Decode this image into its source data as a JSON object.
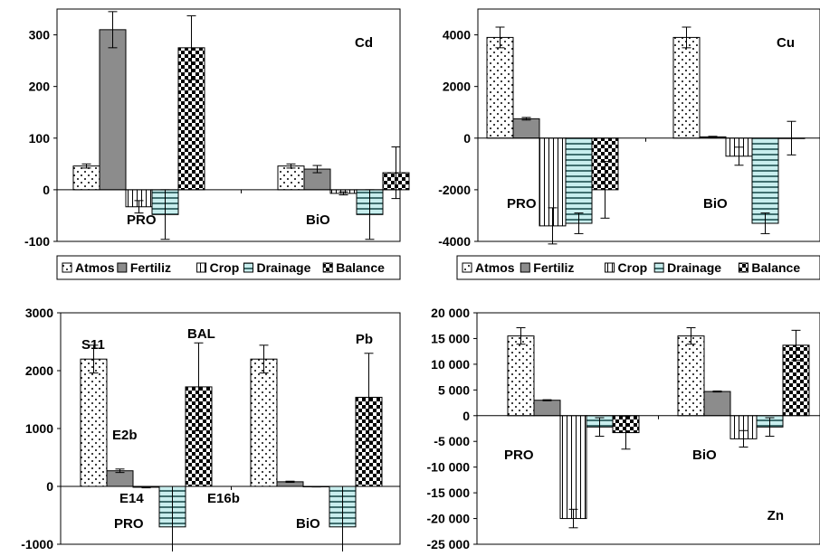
{
  "legend_items": [
    {
      "label": "Atmos",
      "pattern": "dots"
    },
    {
      "label": "Fertiliz",
      "pattern": "gray"
    },
    {
      "label": "Crop",
      "pattern": "vlines"
    },
    {
      "label": "Drainage",
      "pattern": "hlines"
    },
    {
      "label": "Balance",
      "pattern": "checker"
    }
  ],
  "colors": {
    "gray": "#8c8c8c",
    "drainage": "#c8eeee",
    "dark": "#000000"
  },
  "chart_data": [
    {
      "type": "bar",
      "title": "Cd",
      "groups": [
        "PRO",
        "BiO"
      ],
      "series_names": [
        "Atmos",
        "Fertiliz",
        "Crop",
        "Drainage",
        "Balance"
      ],
      "values": [
        [
          46,
          310,
          -33,
          -48,
          275
        ],
        [
          46,
          40,
          -7,
          -48,
          33
        ]
      ],
      "errors": [
        [
          4,
          35,
          12,
          48,
          62
        ],
        [
          4,
          7,
          3,
          48,
          50
        ]
      ],
      "ylim": [
        -100,
        350
      ],
      "yticks": [
        -100,
        0,
        100,
        200,
        300
      ],
      "ytick_labels": [
        "-100",
        "0",
        "100",
        "200",
        "300"
      ],
      "annotations": [],
      "legend": "bottom"
    },
    {
      "type": "bar",
      "title": "Cu",
      "groups": [
        "PRO",
        "BiO"
      ],
      "series_names": [
        "Atmos",
        "Fertiliz",
        "Crop",
        "Drainage",
        "Balance"
      ],
      "values": [
        [
          3900,
          750,
          -3400,
          -3300,
          -2000
        ],
        [
          3900,
          50,
          -700,
          -3300,
          0
        ]
      ],
      "errors": [
        [
          400,
          50,
          700,
          400,
          1100
        ],
        [
          400,
          20,
          350,
          400,
          650
        ]
      ],
      "ylim": [
        -4000,
        5000
      ],
      "yticks": [
        -4000,
        -2000,
        0,
        2000,
        4000
      ],
      "ytick_labels": [
        "-4000",
        "-2000",
        "0",
        "2000",
        "4000"
      ],
      "annotations": [],
      "legend": "bottom"
    },
    {
      "type": "bar",
      "title": "Pb",
      "groups": [
        "PRO",
        "BiO"
      ],
      "series_names": [
        "Atmos",
        "Fertiliz",
        "Crop",
        "Drainage",
        "Balance"
      ],
      "values": [
        [
          2200,
          270,
          -15,
          -700,
          1720
        ],
        [
          2200,
          80,
          -5,
          -700,
          1540
        ]
      ],
      "errors": [
        [
          240,
          30,
          10,
          700,
          760
        ],
        [
          240,
          10,
          5,
          700,
          760
        ]
      ],
      "ylim": [
        -1000,
        3000
      ],
      "yticks": [
        -1000,
        0,
        1000,
        2000,
        3000
      ],
      "ytick_labels": [
        "-1000",
        "0",
        "1000",
        "2000",
        "3000"
      ],
      "annotations": [
        "S11",
        "E2b",
        "E14",
        "E16b",
        "BAL"
      ],
      "legend": "none"
    },
    {
      "type": "bar",
      "title": "Zn",
      "groups": [
        "PRO",
        "BiO"
      ],
      "series_names": [
        "Atmos",
        "Fertiliz",
        "Crop",
        "Drainage",
        "Balance"
      ],
      "values": [
        [
          15500,
          3000,
          -20000,
          -2200,
          -3300
        ],
        [
          15500,
          4700,
          -4500,
          -2200,
          13700
        ]
      ],
      "errors": [
        [
          1600,
          100,
          1800,
          1800,
          3200
        ],
        [
          1600,
          100,
          1600,
          1800,
          2900
        ]
      ],
      "ylim": [
        -25000,
        20000
      ],
      "yticks": [
        -25000,
        -20000,
        -15000,
        -10000,
        -5000,
        0,
        5000,
        10000,
        15000,
        20000
      ],
      "ytick_labels": [
        "-25 000",
        "-20 000",
        "-15 000",
        "-10 000",
        "-5 000",
        "0",
        "5 000",
        "10 000",
        "15 000",
        "20 000"
      ],
      "annotations": [],
      "legend": "none"
    }
  ]
}
